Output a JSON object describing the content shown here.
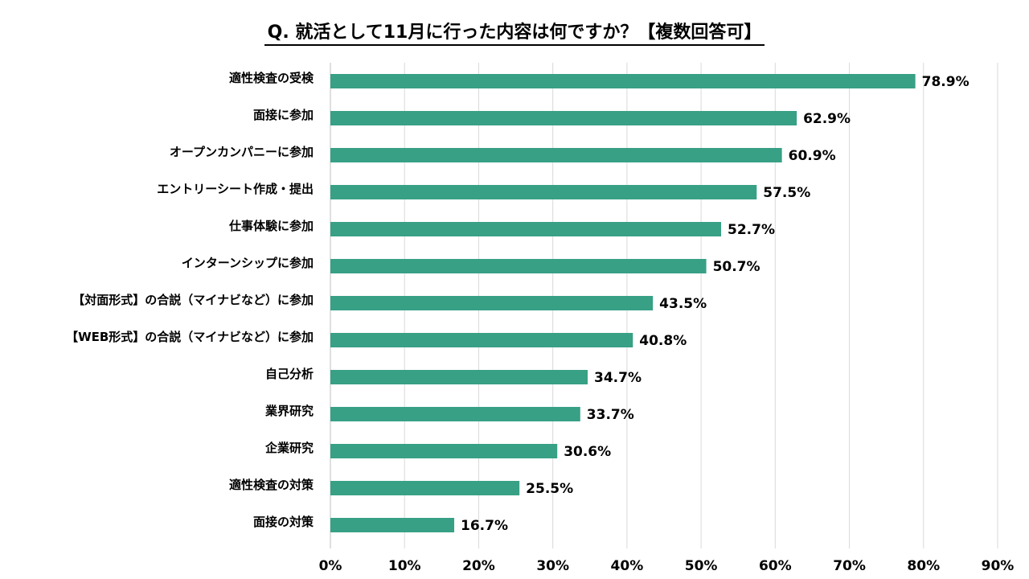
{
  "chart_data": {
    "type": "bar",
    "orientation": "horizontal",
    "title": "Q. 就活として11月に行った内容は何ですか？【複数回答可】",
    "categories": [
      "適性検査の受検",
      "面接に参加",
      "オープンカンパニーに参加",
      "エントリーシート作成・提出",
      "仕事体験に参加",
      "インターンシップに参加",
      "【対面形式】の合説（マイナビなど）に参加",
      "【WEB形式】の合説（マイナビなど）に参加",
      "自己分析",
      "業界研究",
      "企業研究",
      "適性検査の対策",
      "面接の対策"
    ],
    "values": [
      78.9,
      62.9,
      60.9,
      57.5,
      52.7,
      50.7,
      43.5,
      40.8,
      34.7,
      33.7,
      30.6,
      25.5,
      16.7
    ],
    "value_labels": [
      "78.9%",
      "62.9%",
      "60.9%",
      "57.5%",
      "52.7%",
      "50.7%",
      "43.5%",
      "40.8%",
      "34.7%",
      "33.7%",
      "30.6%",
      "25.5%",
      "16.7%"
    ],
    "xlim": [
      0,
      90
    ],
    "xticks": [
      0,
      10,
      20,
      30,
      40,
      50,
      60,
      70,
      80,
      90
    ],
    "xtick_labels": [
      "0%",
      "10%",
      "20%",
      "30%",
      "40%",
      "50%",
      "60%",
      "70%",
      "80%",
      "90%"
    ],
    "xlabel": "",
    "ylabel": "",
    "grid": true,
    "legend": "none",
    "bar_color": "#38a085",
    "grid_color": "#d9d9d9"
  }
}
